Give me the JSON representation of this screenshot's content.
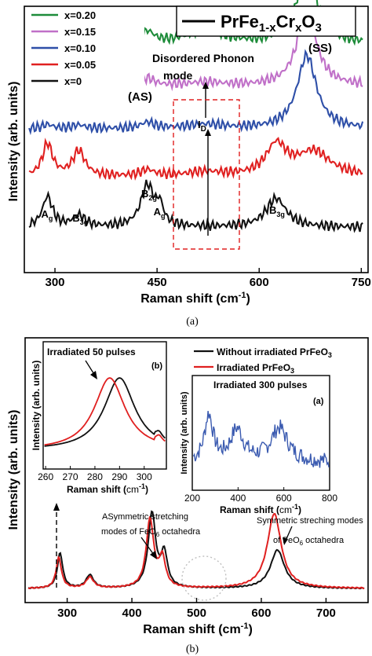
{
  "figure": {
    "caption_a": "(a)",
    "caption_b": "(b)"
  },
  "chart_data": [
    {
      "type": "line",
      "panel": "a",
      "xlabel_prefix": "Raman shift (cm",
      "xlabel_sup": "-1",
      "xlabel_suffix": ")",
      "ylabel": "Intensity (arb. units)",
      "xlim": [
        255,
        760
      ],
      "x_ticks": [
        300,
        450,
        600,
        750
      ],
      "x_tick_labels": [
        "300",
        "450",
        "600",
        "750"
      ],
      "legend_placement": "top-left",
      "title_parts": {
        "main": "PrFe",
        "sub1": "1-x",
        "mid": "Cr",
        "sub2": "x",
        "end": "O",
        "sub3": "3"
      },
      "annotations": {
        "as": "(AS)",
        "ss": "(SS)",
        "disordered_line1": "Disordered Phonon",
        "disordered_line2": "mode",
        "id_main": "I",
        "id_sub": "D",
        "region_x": [
          470,
          575
        ]
      },
      "mode_labels": [
        {
          "main": "A",
          "sub": "g",
          "x": 289
        },
        {
          "main": "B",
          "sub": "3g",
          "x": 335
        },
        {
          "main": "B",
          "sub": "2g",
          "x": 436
        },
        {
          "main": "A",
          "sub": "g",
          "x": 454
        },
        {
          "main": "B",
          "sub": "3g",
          "x": 624
        }
      ],
      "series": [
        {
          "name": "x=0.20",
          "color": "#1e8c3a",
          "baseline": 0.86,
          "peaks": [
            [
              289,
              0.04
            ],
            [
              335,
              0.05
            ],
            [
              436,
              0.22
            ],
            [
              520,
              0.26
            ],
            [
              670,
              1.45
            ]
          ]
        },
        {
          "name": "x=0.15",
          "color": "#c070c8",
          "baseline": 0.7,
          "peaks": [
            [
              289,
              0.08
            ],
            [
              335,
              0.09
            ],
            [
              436,
              0.15
            ],
            [
              520,
              0.07
            ],
            [
              670,
              1.5
            ]
          ]
        },
        {
          "name": "x=0.10",
          "color": "#2e4fa8",
          "baseline": 0.54,
          "peaks": [
            [
              289,
              0.08
            ],
            [
              335,
              0.07
            ],
            [
              436,
              0.12
            ],
            [
              520,
              0.08
            ],
            [
              670,
              1.45
            ]
          ]
        },
        {
          "name": "x=0.05",
          "color": "#e02020",
          "baseline": 0.36,
          "peaks": [
            [
              289,
              0.64
            ],
            [
              335,
              0.5
            ],
            [
              436,
              0.12
            ],
            [
              520,
              0.08
            ],
            [
              625,
              0.6
            ],
            [
              680,
              0.48
            ]
          ]
        },
        {
          "name": "x=0",
          "color": "#111111",
          "baseline": 0.17,
          "peaks": [
            [
              289,
              0.6
            ],
            [
              335,
              0.22
            ],
            [
              436,
              0.82
            ],
            [
              454,
              0.35
            ],
            [
              625,
              0.57
            ]
          ]
        }
      ]
    },
    {
      "type": "line",
      "panel": "b",
      "xlabel_prefix": "Raman shift (cm",
      "xlabel_sup": "-1",
      "xlabel_suffix": ")",
      "ylabel": "Intensity (arb. units)",
      "xlim": [
        235,
        765
      ],
      "x_ticks": [
        300,
        400,
        500,
        600,
        700
      ],
      "x_tick_labels": [
        "300",
        "400",
        "500",
        "600",
        "700"
      ],
      "legend_placement": "top-right",
      "annotations": {
        "asym_line1": "ASymmetric stretching",
        "asym_line2": "modes of FeO",
        "asym_sub": "6",
        "asym_end": " octahedra",
        "sym_line1": "Symmetric streching modes",
        "sym_line2": "of FeO",
        "sym_sub": "6",
        "sym_end": " octahedra"
      },
      "series": [
        {
          "name": "Without irradiated PrFeO",
          "name_sub": "3",
          "color": "#111111",
          "baseline": 0.02,
          "peaks": [
            [
              289,
              0.32
            ],
            [
              335,
              0.12
            ],
            [
              431,
              0.68
            ],
            [
              450,
              0.3
            ],
            [
              625,
              0.35
            ]
          ]
        },
        {
          "name": "Irradiated PrFeO",
          "name_sub": "3",
          "color": "#e02020",
          "baseline": 0.02,
          "peaks": [
            [
              287,
              0.28
            ],
            [
              335,
              0.1
            ],
            [
              428,
              0.62
            ],
            [
              447,
              0.26
            ],
            [
              620,
              0.68
            ]
          ]
        }
      ],
      "inset_left": {
        "label": "Irradiated 50 pulses",
        "tag": "(b)",
        "xlabel_prefix": "Raman shift (",
        "xlabel_unit": "cm",
        "xlabel_sup": "-1",
        "xlabel_suffix": ")",
        "ylabel": "Intensity (arb. units)",
        "xlim": [
          259,
          309
        ],
        "x_ticks": [
          260,
          270,
          280,
          290,
          300
        ],
        "x_tick_labels": [
          "260",
          "270",
          "280",
          "290",
          "300"
        ],
        "peaks": {
          "Without irradiated PrFeO": 290,
          "Irradiated PrFeO": 286
        }
      },
      "inset_right": {
        "label": "Irradiated 300 pulses",
        "tag": "(a)",
        "xlabel_prefix": "Raman shift (",
        "xlabel_unit": "cm",
        "xlabel_sup": "-1",
        "xlabel_suffix": ")",
        "ylabel": "Intensity (arb. units)",
        "xlim": [
          200,
          800
        ],
        "x_ticks": [
          200,
          400,
          600,
          800
        ],
        "x_tick_labels": [
          "200",
          "400",
          "600",
          "800"
        ],
        "color": "#3a5ab0"
      }
    }
  ]
}
